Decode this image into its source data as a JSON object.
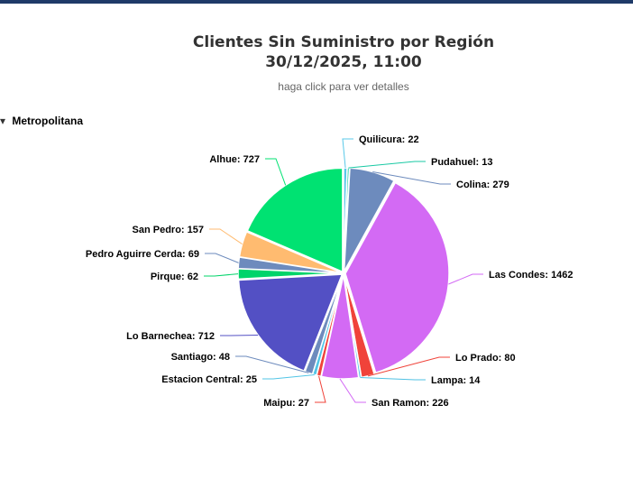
{
  "header": {
    "title_line1": "Clientes Sin Suministro por Región",
    "title_line2": "30/12/2025, 11:00",
    "subtitle": "haga click para ver detalles"
  },
  "drilldown": {
    "label": "Metropolitana"
  },
  "chart_data": {
    "type": "pie",
    "title": "Clientes Sin Suministro por Región 30/12/2025, 11:00",
    "subtitle": "haga click para ver detalles",
    "category": "Metropolitana",
    "slices": [
      {
        "name": "Quilicura",
        "value": 22,
        "color": "#58c8e8"
      },
      {
        "name": "Pudahuel",
        "value": 13,
        "color": "#19c9a4"
      },
      {
        "name": "Colina",
        "value": 279,
        "color": "#6d8bbd"
      },
      {
        "name": "Las Condes",
        "value": 1462,
        "color": "#d36af4"
      },
      {
        "name": "Lo Prado",
        "value": 80,
        "color": "#f0433a"
      },
      {
        "name": "Lampa",
        "value": 14,
        "color": "#4fc1e3"
      },
      {
        "name": "San Ramon",
        "value": 226,
        "color": "#d36af4"
      },
      {
        "name": "Maipu",
        "value": 27,
        "color": "#f0433a"
      },
      {
        "name": "Estacion Central",
        "value": 25,
        "color": "#52c5e6"
      },
      {
        "name": "Santiago",
        "value": 48,
        "color": "#6d8bbd"
      },
      {
        "name": "Lo Barnechea",
        "value": 712,
        "color": "#5350c4"
      },
      {
        "name": "Pirque",
        "value": 62,
        "color": "#00d46a"
      },
      {
        "name": "Pedro Aguirre Cerda",
        "value": 69,
        "color": "#6d8bbd"
      },
      {
        "name": "San Pedro",
        "value": 157,
        "color": "#ffbb70"
      },
      {
        "name": "Alhue",
        "value": 727,
        "color": "#00e272"
      }
    ]
  }
}
